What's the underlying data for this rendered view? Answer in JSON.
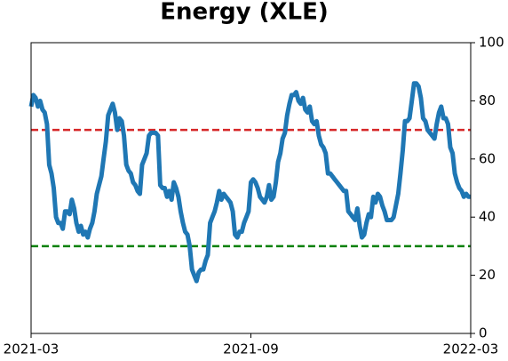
{
  "chart_data": {
    "type": "line",
    "title": "Energy (XLE)",
    "xlim": [
      "2021-03",
      "2022-03"
    ],
    "xticks": [
      "2021-03",
      "2021-09",
      "2022-03"
    ],
    "ylim": [
      0,
      100
    ],
    "yticks": [
      0,
      20,
      40,
      60,
      80,
      100
    ],
    "y_axis_side": "right",
    "hlines": [
      {
        "value": 70,
        "color": "#d62728"
      },
      {
        "value": 30,
        "color": "#008000"
      }
    ],
    "series": [
      {
        "color": "#1f77b4",
        "values": [
          78,
          82,
          81,
          78,
          80,
          77,
          76,
          72,
          58,
          55,
          50,
          40,
          38,
          38,
          36,
          42,
          42,
          41,
          46,
          43,
          38,
          35,
          37,
          34,
          35,
          33,
          36,
          38,
          42,
          48,
          51,
          54,
          60,
          66,
          75,
          77,
          79,
          76,
          70,
          74,
          73,
          68,
          58,
          56,
          55,
          52,
          51,
          49,
          48,
          58,
          60,
          62,
          68,
          69,
          69,
          69,
          68,
          51,
          50,
          50,
          47,
          49,
          46,
          52,
          50,
          47,
          42,
          38,
          35,
          34,
          30,
          22,
          20,
          18,
          21,
          22,
          22,
          25,
          27,
          38,
          40,
          42,
          45,
          49,
          46,
          48,
          47,
          46,
          45,
          42,
          34,
          33,
          35,
          35,
          38,
          40,
          42,
          52,
          53,
          52,
          50,
          47,
          46,
          45,
          47,
          51,
          46,
          47,
          52,
          59,
          62,
          67,
          69,
          75,
          79,
          82,
          82,
          83,
          80,
          79,
          81,
          77,
          76,
          78,
          73,
          72,
          73,
          68,
          65,
          64,
          62,
          55,
          55,
          54,
          53,
          52,
          51,
          50,
          49,
          49,
          42,
          41,
          40,
          39,
          43,
          37,
          33,
          34,
          38,
          41,
          40,
          47,
          45,
          48,
          47,
          44,
          42,
          39,
          39,
          39,
          40,
          44,
          48,
          55,
          63,
          73,
          73,
          74,
          80,
          86,
          86,
          85,
          81,
          74,
          73,
          70,
          69,
          68,
          67,
          72,
          76,
          78,
          74,
          74,
          72,
          64,
          62,
          55,
          52,
          50,
          49,
          47,
          48,
          47,
          47
        ]
      }
    ]
  }
}
